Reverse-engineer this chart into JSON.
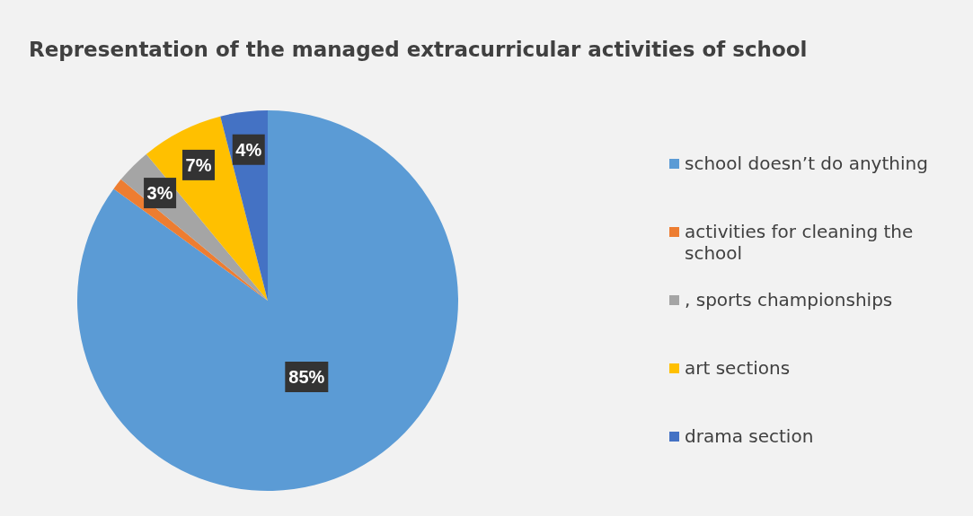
{
  "chart_data": {
    "type": "pie",
    "title": "Representation of the managed extracurricular activities of school",
    "categories": [
      "school doesn’t do anything",
      "activities for cleaning the school",
      ", sports championships",
      "art sections",
      "drama section"
    ],
    "values": [
      85,
      1,
      3,
      7,
      4
    ],
    "colors": [
      "#5b9bd5",
      "#ed7d31",
      "#a5a5a5",
      "#ffc000",
      "#4472c4"
    ],
    "value_labels": [
      "85%",
      null,
      "3%",
      "7%",
      "4%"
    ],
    "legend": "right"
  }
}
